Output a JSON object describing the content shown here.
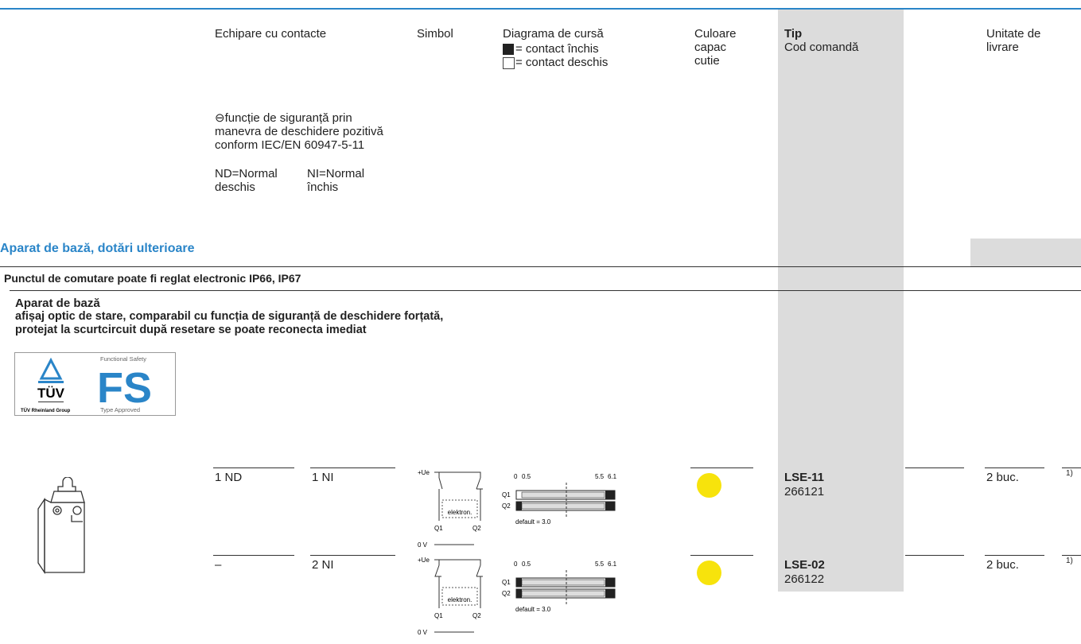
{
  "header": {
    "equipment": "Echipare cu contacte",
    "safety_symbol": "⊖",
    "safety_note": "funcție de siguranță prin manevra de deschidere pozitivă conform IEC/EN 60947-5-11",
    "no_label": "ND=Normal deschis",
    "nc_label": "NI=Normal închis",
    "symbol": "Simbol",
    "travel_diagram": "Diagrama de cursă",
    "closed_legend": "= contact închis",
    "open_legend": "= contact deschis",
    "cap_color": "Culoare capac cutie",
    "type": "Tip",
    "order_code": "Cod comandă",
    "delivery_unit": "Unitate de livrare"
  },
  "section": {
    "title": "Aparat de bază, dotări ulterioare",
    "subtitle": "Punctul de comutare poate fi reglat electronic IP66, IP67",
    "group_title": "Aparat de bază",
    "group_lines": [
      "afișaj optic de stare, comparabil cu funcția de siguranță de deschidere forțată,",
      "protejat la scurtcircuit după resetare se poate reconecta imediat"
    ]
  },
  "logo": {
    "top": "Functional Safety",
    "mark": "FS",
    "brand": "TÜV",
    "group": "TÜV Rheinland Group",
    "approved": "Type Approved"
  },
  "rows": [
    {
      "no": "1 ND",
      "nc": "1 NI",
      "symbol": {
        "supply": "+Ue",
        "box": "elektron.",
        "q1": "Q1",
        "q2": "Q2",
        "ground": "0 V"
      },
      "diagram": {
        "ticks": [
          "0",
          "0.5",
          "5.5",
          "6.1"
        ],
        "q1": "Q1",
        "q2": "Q2",
        "default": "default = 3.0"
      },
      "type": "LSE-11",
      "code": "266121",
      "unit": "2 buc.",
      "footnote": "1)"
    },
    {
      "no": "–",
      "nc": "2 NI",
      "symbol": {
        "supply": "+Ue",
        "box": "elektron.",
        "q1": "Q1",
        "q2": "Q2",
        "ground": "0 V"
      },
      "diagram": {
        "ticks": [
          "0",
          "0.5",
          "5.5",
          "6.1"
        ],
        "q1": "Q1",
        "q2": "Q2",
        "default": "default = 3.0"
      },
      "type": "LSE-02",
      "code": "266122",
      "unit": "2 buc.",
      "footnote": "1)"
    }
  ]
}
